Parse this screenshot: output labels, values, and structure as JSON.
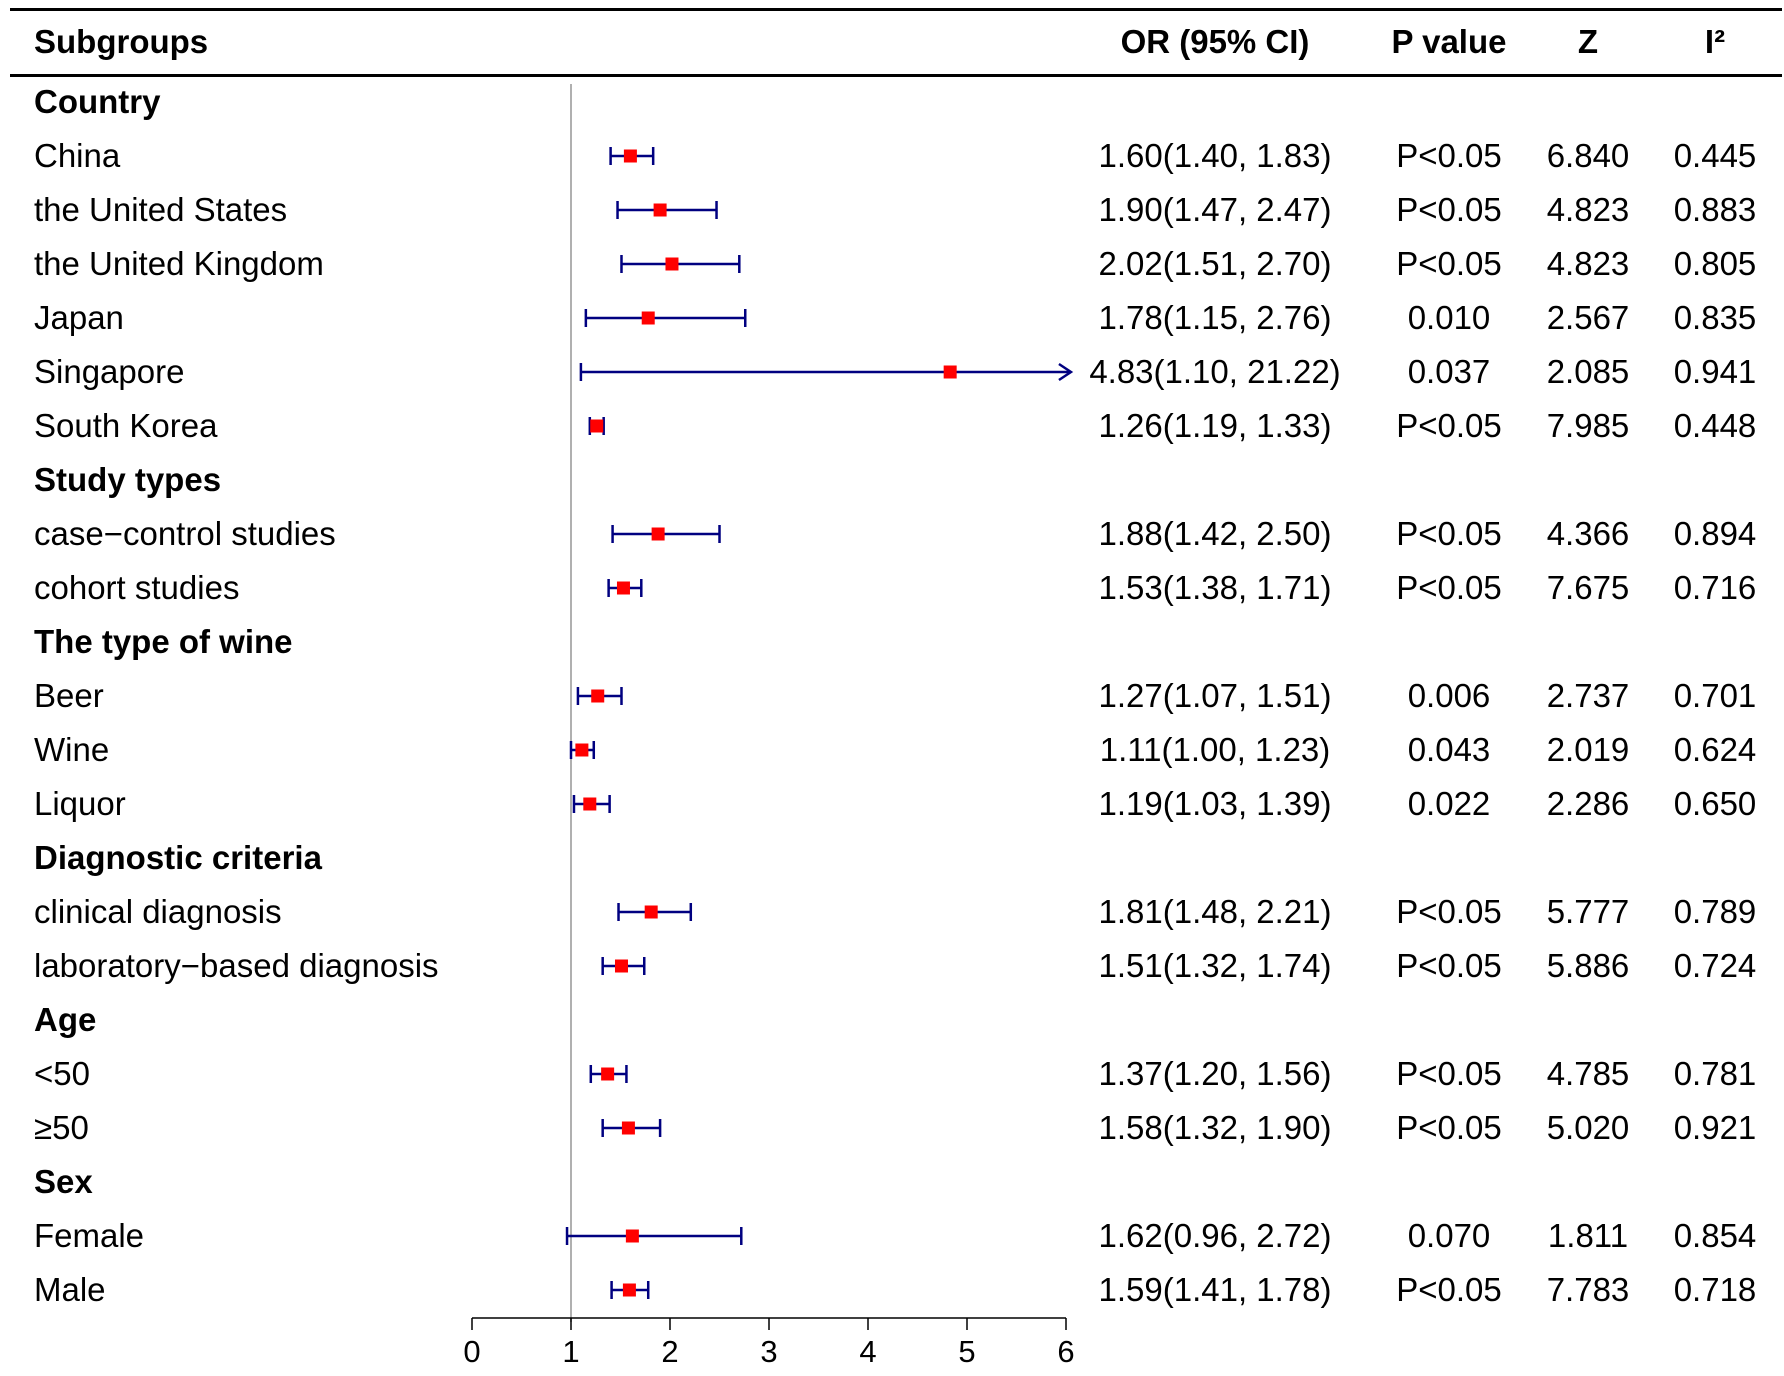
{
  "chart_data": {
    "type": "forest",
    "headers": {
      "subgroups": "Subgroups",
      "or": "OR (95% CI)",
      "p": "P value",
      "z": "Z",
      "i2": "I²"
    },
    "reference_line": 1,
    "xlim": [
      0,
      6
    ],
    "xticks": [
      0,
      1,
      2,
      3,
      4,
      5,
      6
    ],
    "xtick_labels": [
      "0",
      "1",
      "2",
      "3",
      "4",
      "5",
      "6"
    ],
    "rows": [
      {
        "label": "Country",
        "group": true
      },
      {
        "label": "China",
        "or": 1.6,
        "lo": 1.4,
        "hi": 1.83,
        "or_text": "1.60(1.40, 1.83)",
        "p": "P<0.05",
        "z": "6.840",
        "i2": "0.445"
      },
      {
        "label": "the United States",
        "or": 1.9,
        "lo": 1.47,
        "hi": 2.47,
        "or_text": "1.90(1.47, 2.47)",
        "p": "P<0.05",
        "z": "4.823",
        "i2": "0.883"
      },
      {
        "label": "the United Kingdom",
        "or": 2.02,
        "lo": 1.51,
        "hi": 2.7,
        "or_text": "2.02(1.51, 2.70)",
        "p": "P<0.05",
        "z": "4.823",
        "i2": "0.805"
      },
      {
        "label": "Japan",
        "or": 1.78,
        "lo": 1.15,
        "hi": 2.76,
        "or_text": "1.78(1.15, 2.76)",
        "p": "0.010",
        "z": "2.567",
        "i2": "0.835"
      },
      {
        "label": "Singapore",
        "or": 4.83,
        "lo": 1.1,
        "hi": 21.22,
        "or_text": "4.83(1.10, 21.22)",
        "p": "0.037",
        "z": "2.085",
        "i2": "0.941"
      },
      {
        "label": "South Korea",
        "or": 1.26,
        "lo": 1.19,
        "hi": 1.33,
        "or_text": "1.26(1.19, 1.33)",
        "p": "P<0.05",
        "z": "7.985",
        "i2": "0.448"
      },
      {
        "label": "Study types",
        "group": true
      },
      {
        "label": "case−control studies",
        "or": 1.88,
        "lo": 1.42,
        "hi": 2.5,
        "or_text": "1.88(1.42, 2.50)",
        "p": "P<0.05",
        "z": "4.366",
        "i2": "0.894"
      },
      {
        "label": "cohort studies",
        "or": 1.53,
        "lo": 1.38,
        "hi": 1.71,
        "or_text": "1.53(1.38, 1.71)",
        "p": "P<0.05",
        "z": "7.675",
        "i2": "0.716"
      },
      {
        "label": "The type of wine",
        "group": true
      },
      {
        "label": "Beer",
        "or": 1.27,
        "lo": 1.07,
        "hi": 1.51,
        "or_text": "1.27(1.07, 1.51)",
        "p": "0.006",
        "z": "2.737",
        "i2": "0.701"
      },
      {
        "label": "Wine",
        "or": 1.11,
        "lo": 1.0,
        "hi": 1.23,
        "or_text": "1.11(1.00, 1.23)",
        "p": "0.043",
        "z": "2.019",
        "i2": "0.624"
      },
      {
        "label": "Liquor",
        "or": 1.19,
        "lo": 1.03,
        "hi": 1.39,
        "or_text": "1.19(1.03, 1.39)",
        "p": "0.022",
        "z": "2.286",
        "i2": "0.650"
      },
      {
        "label": "Diagnostic criteria",
        "group": true
      },
      {
        "label": "clinical diagnosis",
        "or": 1.81,
        "lo": 1.48,
        "hi": 2.21,
        "or_text": "1.81(1.48, 2.21)",
        "p": "P<0.05",
        "z": "5.777",
        "i2": "0.789"
      },
      {
        "label": "laboratory−based diagnosis",
        "or": 1.51,
        "lo": 1.32,
        "hi": 1.74,
        "or_text": "1.51(1.32, 1.74)",
        "p": "P<0.05",
        "z": "5.886",
        "i2": "0.724"
      },
      {
        "label": "Age",
        "group": true
      },
      {
        "label": "<50",
        "or": 1.37,
        "lo": 1.2,
        "hi": 1.56,
        "or_text": "1.37(1.20, 1.56)",
        "p": "P<0.05",
        "z": "4.785",
        "i2": "0.781"
      },
      {
        "label": "≥50",
        "or": 1.58,
        "lo": 1.32,
        "hi": 1.9,
        "or_text": "1.58(1.32, 1.90)",
        "p": "P<0.05",
        "z": "5.020",
        "i2": "0.921"
      },
      {
        "label": "Sex",
        "group": true
      },
      {
        "label": "Female",
        "or": 1.62,
        "lo": 0.96,
        "hi": 2.72,
        "or_text": "1.62(0.96, 2.72)",
        "p": "0.070",
        "z": "1.811",
        "i2": "0.854"
      },
      {
        "label": "Male",
        "or": 1.59,
        "lo": 1.41,
        "hi": 1.78,
        "or_text": "1.59(1.41, 1.78)",
        "p": "P<0.05",
        "z": "7.783",
        "i2": "0.718"
      }
    ]
  },
  "colors": {
    "ci_line": "#000080",
    "point": "#ff0000",
    "reference": "#b0b0b0",
    "axis": "#000000"
  }
}
